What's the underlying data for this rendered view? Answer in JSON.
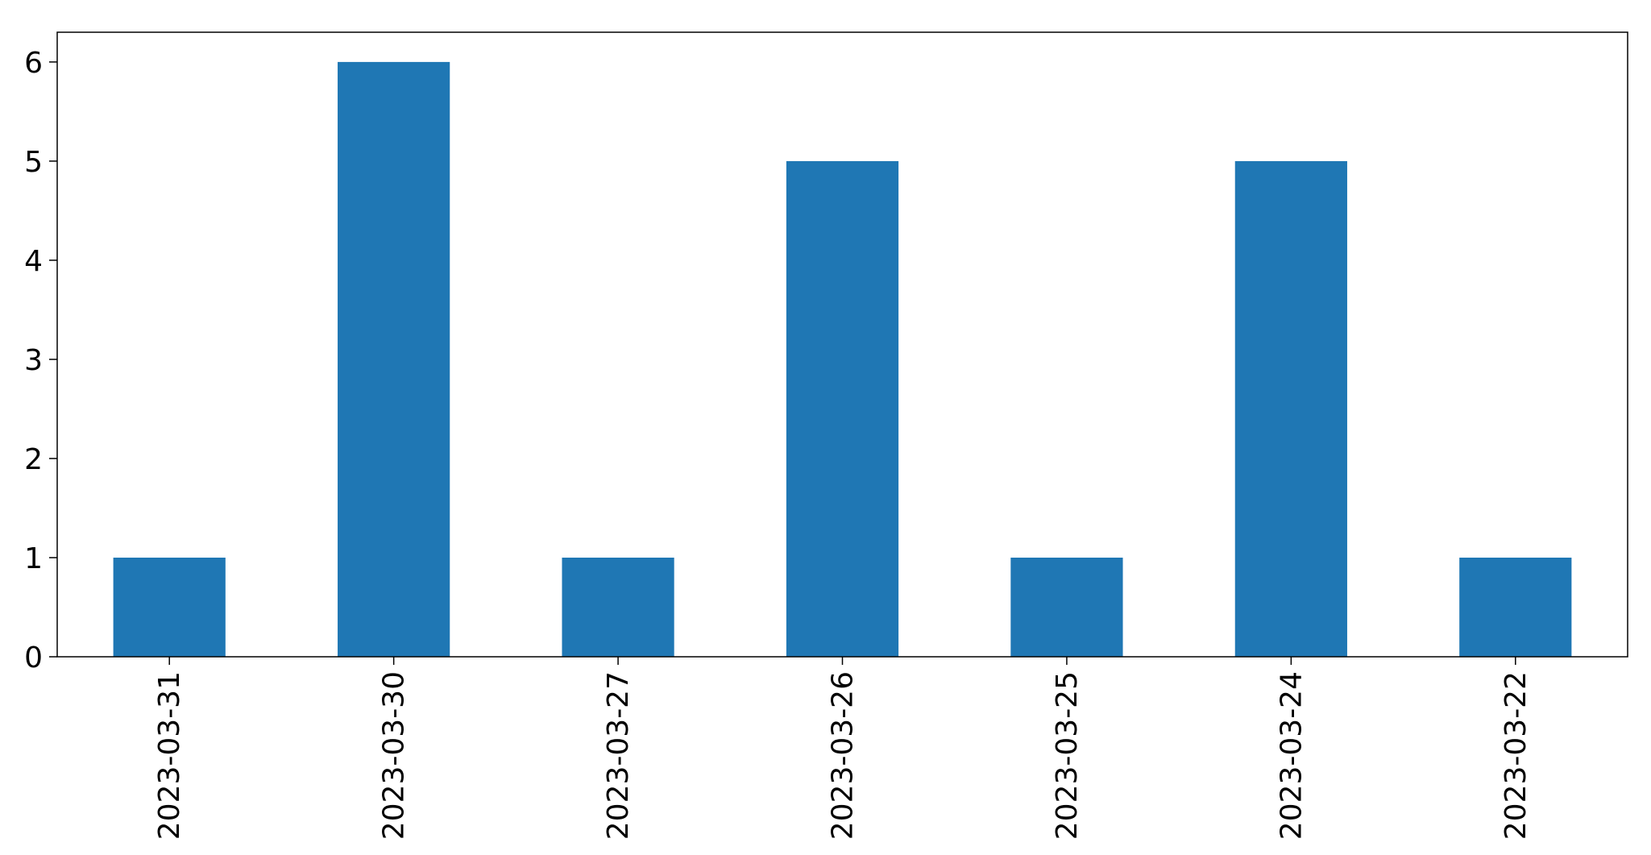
{
  "chart_data": {
    "type": "bar",
    "categories": [
      "2023-03-31",
      "2023-03-30",
      "2023-03-27",
      "2023-03-26",
      "2023-03-25",
      "2023-03-24",
      "2023-03-22"
    ],
    "values": [
      1,
      6,
      1,
      5,
      1,
      5,
      1
    ],
    "title": "",
    "xlabel": "",
    "ylabel": "",
    "ylim": [
      0,
      6.3
    ],
    "yticks": [
      0,
      1,
      2,
      3,
      4,
      5,
      6
    ],
    "grid": false,
    "legend": "none",
    "bar_color": "#1f77b4"
  }
}
